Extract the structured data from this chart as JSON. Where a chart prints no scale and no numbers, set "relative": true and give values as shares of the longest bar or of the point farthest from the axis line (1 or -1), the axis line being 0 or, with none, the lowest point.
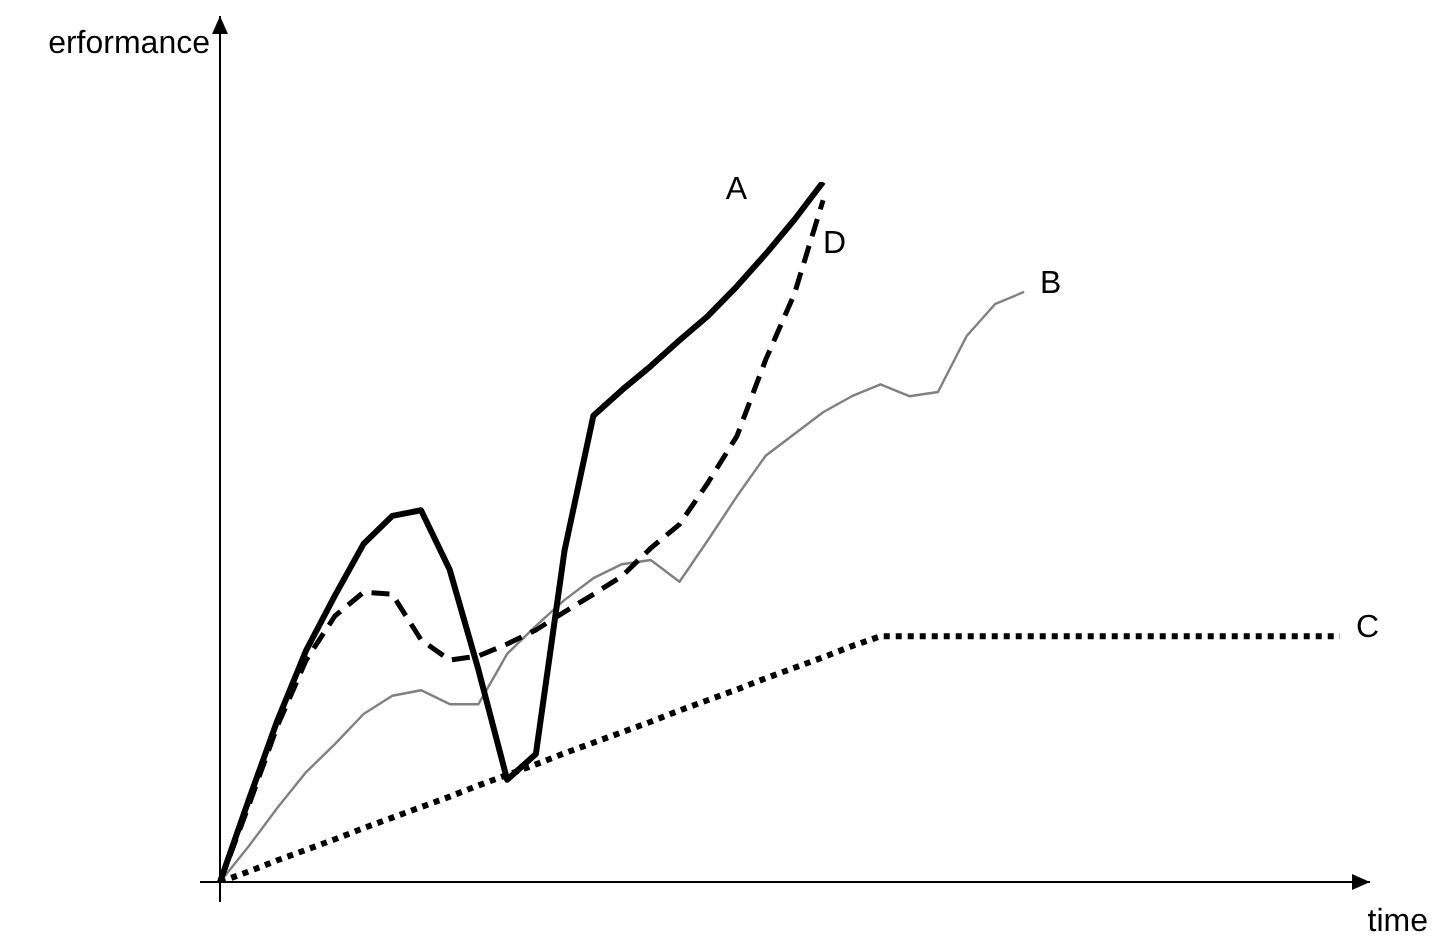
{
  "chart_data": {
    "type": "line",
    "relative": true,
    "xlabel": "time",
    "ylabel": "erformance",
    "legend": false,
    "marker": "none",
    "categories": [
      null,
      null,
      null,
      null,
      null,
      null,
      null,
      null,
      null,
      null,
      null,
      null,
      null,
      null,
      null,
      null,
      null,
      null,
      null,
      null,
      null,
      null,
      null,
      null,
      null,
      null,
      null,
      null,
      null,
      null,
      null,
      null,
      null,
      null,
      null,
      null,
      null,
      null,
      null,
      null
    ],
    "series": [
      {
        "name": "A",
        "color": "#000000",
        "line_style": "solid",
        "values": [
          0,
          0.117,
          0.231,
          0.331,
          0.409,
          0.483,
          0.523,
          0.531,
          0.446,
          0.303,
          0.146,
          0.183,
          0.474,
          0.666,
          0.703,
          0.737,
          0.774,
          0.809,
          0.851,
          0.897,
          0.946,
          1,
          null,
          null,
          null,
          null,
          null,
          null,
          null,
          null,
          null,
          null,
          null,
          null,
          null,
          null,
          null,
          null,
          null,
          null
        ]
      },
      {
        "name": "D",
        "color": "#000000",
        "line_style": "dashed",
        "values": [
          0,
          0.109,
          0.223,
          0.317,
          0.38,
          0.414,
          0.411,
          0.346,
          0.317,
          0.323,
          0.34,
          0.36,
          0.386,
          0.411,
          0.437,
          0.477,
          0.511,
          0.571,
          0.637,
          0.746,
          0.84,
          0.974,
          null,
          null,
          null,
          null,
          null,
          null,
          null,
          null,
          null,
          null,
          null,
          null,
          null,
          null,
          null,
          null,
          null,
          null
        ]
      },
      {
        "name": "B",
        "color": "#808080",
        "line_style": "solid",
        "values": [
          0,
          0.051,
          0.106,
          0.157,
          0.197,
          0.24,
          0.266,
          0.274,
          0.254,
          0.254,
          0.326,
          0.366,
          0.403,
          0.434,
          0.454,
          0.46,
          0.429,
          0.489,
          0.551,
          0.609,
          0.64,
          0.671,
          0.694,
          0.711,
          0.694,
          0.7,
          0.78,
          0.826,
          0.843,
          null,
          null,
          null,
          null,
          null,
          null,
          null,
          null,
          null,
          null,
          null
        ]
      },
      {
        "name": "C",
        "color": "#000000",
        "line_style": "dotted",
        "values": [
          0,
          0.015,
          0.031,
          0.046,
          0.061,
          0.077,
          0.092,
          0.107,
          0.122,
          0.138,
          0.153,
          0.168,
          0.184,
          0.199,
          0.214,
          0.229,
          0.245,
          0.26,
          0.275,
          0.291,
          0.306,
          0.321,
          0.337,
          0.351,
          0.351,
          0.351,
          0.351,
          0.351,
          0.351,
          0.351,
          0.351,
          0.351,
          0.351,
          0.351,
          0.351,
          0.351,
          0.351,
          0.351,
          0.351,
          0.351
        ]
      }
    ]
  }
}
